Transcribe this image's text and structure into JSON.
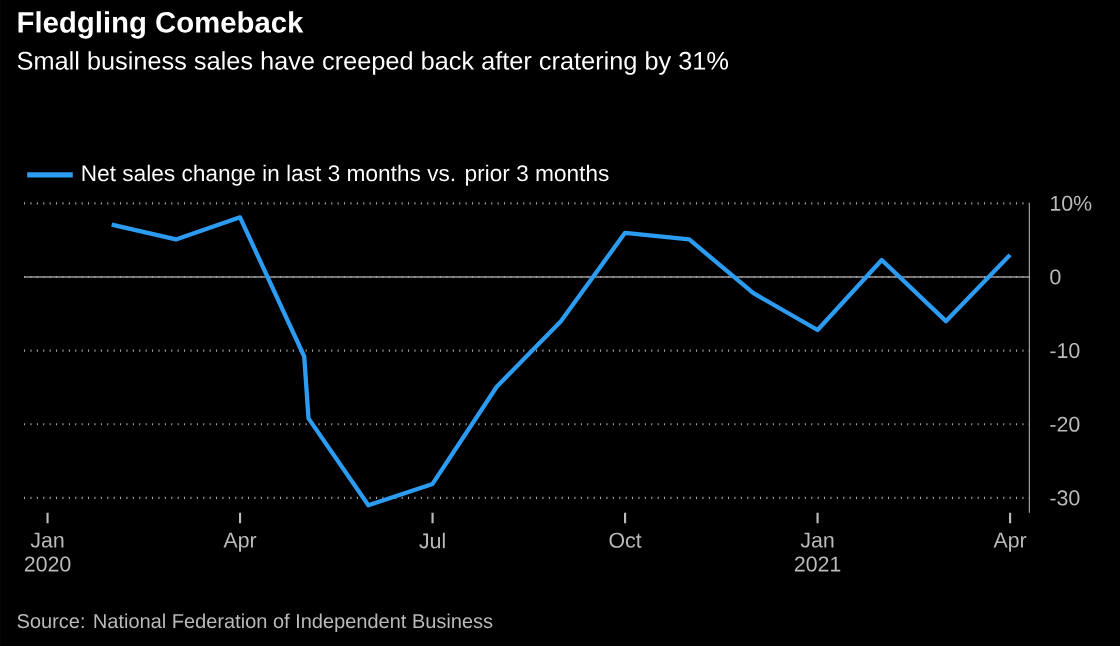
{
  "chart_data": {
    "type": "line",
    "title": "Fledgling Comeback",
    "subtitle": "Small business sales have creeped back after cratering by 31%",
    "annotations": [
      "Source: National Federation of Independent Business"
    ],
    "x": [
      "2020-02",
      "2020-03",
      "2020-04",
      "2020-05-01",
      "2020-05-03",
      "2020-06",
      "2020-07",
      "2020-08",
      "2020-09",
      "2020-10",
      "2020-11",
      "2020-12",
      "2021-01",
      "2021-02",
      "2021-03",
      "2021-04"
    ],
    "series": [
      {
        "name": "Net sales change in last 3 months vs. prior 3 months",
        "color": "#2b9cf2",
        "values": [
          7.1,
          5.1,
          8.1,
          -10.8,
          -19.2,
          -31,
          -28.1,
          -14.9,
          -6,
          6,
          5.1,
          -2.2,
          -7.2,
          2.3,
          -6,
          3
        ]
      }
    ],
    "xlim": [
      "2019-12-20",
      "2021-04-10"
    ],
    "ylim": [
      -32,
      10
    ],
    "xticks": [
      {
        "value": "2020-01",
        "label": "Jan 2020"
      },
      {
        "value": "2020-04",
        "label": "Apr"
      },
      {
        "value": "2020-07",
        "label": "Jul"
      },
      {
        "value": "2020-10",
        "label": "Oct"
      },
      {
        "value": "2021-01",
        "label": "Jan 2021"
      },
      {
        "value": "2021-04",
        "label": "Apr"
      }
    ],
    "yticks": [
      {
        "value": 10,
        "label": "10%"
      },
      0,
      -10,
      -20,
      -30
    ],
    "ref_lines": [
      {
        "axis": "y",
        "value": 0,
        "color": "#9a9a9a"
      }
    ],
    "grid": "y",
    "legend": "top left"
  }
}
